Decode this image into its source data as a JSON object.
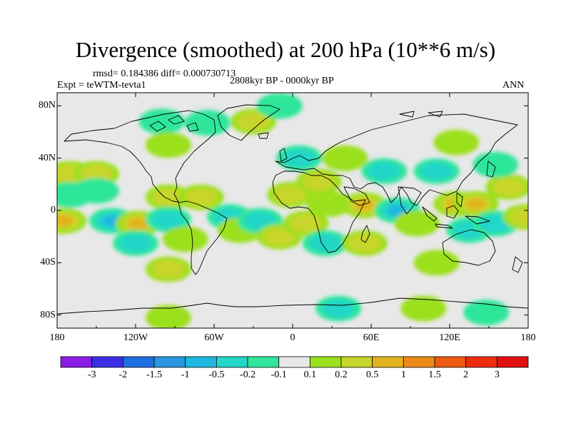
{
  "title": "Divergence (smoothed) at 200 hPa (10**6 m/s)",
  "stats": "rmsd= 0.184386 diff= 0.000730713",
  "expt_label": "Expt = teWTM-tevta1",
  "period": "2808kyr BP - 0000kyr BP",
  "season": "ANN",
  "x_ticks": [
    "180",
    "120W",
    "60W",
    "0",
    "60E",
    "120E",
    "180"
  ],
  "y_ticks": [
    "80N",
    "40N",
    "0",
    "40S",
    "80S"
  ],
  "colorbar": {
    "labels": [
      "-3",
      "-2",
      "-1.5",
      "-1",
      "-0.5",
      "-0.2",
      "-0.1",
      "0.1",
      "0.2",
      "0.5",
      "1",
      "1.5",
      "2",
      "3"
    ],
    "colors": [
      "#8a1de6",
      "#3b2ee6",
      "#1e6fe0",
      "#2a97e0",
      "#1fb8e0",
      "#23d6c8",
      "#2fe69a",
      "#e8e8e8",
      "#9be01c",
      "#c8d52a",
      "#e2b41f",
      "#ec8a1a",
      "#ee5a12",
      "#ee2d10",
      "#e01010"
    ]
  },
  "chart_data": {
    "type": "heatmap",
    "title": "Divergence (smoothed) at 200 hPa (10**6 m/s)",
    "units": "10**6 m/s",
    "xlim": [
      -180,
      180
    ],
    "ylim": [
      -90,
      90
    ],
    "contour_levels": [
      -3,
      -2,
      -1.5,
      -1,
      -0.5,
      -0.2,
      -0.1,
      0.1,
      0.2,
      0.5,
      1,
      1.5,
      2,
      3
    ],
    "anomalies": [
      {
        "lon": -170,
        "lat": 28,
        "value": 0.6
      },
      {
        "lon": -150,
        "lat": 28,
        "value": 0.6
      },
      {
        "lon": -170,
        "lat": 12,
        "value": -0.3
      },
      {
        "lon": -150,
        "lat": 15,
        "value": -0.25
      },
      {
        "lon": -175,
        "lat": -8,
        "value": 0.8
      },
      {
        "lon": -138,
        "lat": -8,
        "value": -1.0
      },
      {
        "lon": -118,
        "lat": -10,
        "value": 0.8
      },
      {
        "lon": -120,
        "lat": -25,
        "value": -0.5
      },
      {
        "lon": -95,
        "lat": 10,
        "value": 0.7
      },
      {
        "lon": -70,
        "lat": 10,
        "value": 0.5
      },
      {
        "lon": -95,
        "lat": -7,
        "value": -0.6
      },
      {
        "lon": -82,
        "lat": -22,
        "value": 0.3
      },
      {
        "lon": -95,
        "lat": -45,
        "value": 0.4
      },
      {
        "lon": -95,
        "lat": -82,
        "value": 0.3
      },
      {
        "lon": -48,
        "lat": -5,
        "value": -0.4
      },
      {
        "lon": -40,
        "lat": -15,
        "value": 0.3
      },
      {
        "lon": -25,
        "lat": -8,
        "value": -0.6
      },
      {
        "lon": -10,
        "lat": -20,
        "value": 0.4
      },
      {
        "lon": -100,
        "lat": 68,
        "value": -0.3
      },
      {
        "lon": -95,
        "lat": 50,
        "value": 0.25
      },
      {
        "lon": -65,
        "lat": 67,
        "value": -0.3
      },
      {
        "lon": -30,
        "lat": 68,
        "value": 0.5
      },
      {
        "lon": -10,
        "lat": 80,
        "value": -0.3
      },
      {
        "lon": -2,
        "lat": 12,
        "value": 0.5
      },
      {
        "lon": 10,
        "lat": -10,
        "value": 0.4
      },
      {
        "lon": 20,
        "lat": 22,
        "value": 0.4
      },
      {
        "lon": 25,
        "lat": -25,
        "value": -0.7
      },
      {
        "lon": 28,
        "lat": 5,
        "value": 0.3
      },
      {
        "lon": 40,
        "lat": 40,
        "value": 0.3
      },
      {
        "lon": 55,
        "lat": 4,
        "value": 0.9
      },
      {
        "lon": 70,
        "lat": 30,
        "value": -0.5
      },
      {
        "lon": 55,
        "lat": -25,
        "value": 0.5
      },
      {
        "lon": 80,
        "lat": 0,
        "value": -0.8
      },
      {
        "lon": 95,
        "lat": -10,
        "value": 0.3
      },
      {
        "lon": 110,
        "lat": 30,
        "value": -0.7
      },
      {
        "lon": 125,
        "lat": 5,
        "value": 1.1
      },
      {
        "lon": 140,
        "lat": 5,
        "value": 0.8
      },
      {
        "lon": 135,
        "lat": -15,
        "value": -0.5
      },
      {
        "lon": 155,
        "lat": -10,
        "value": -0.4
      },
      {
        "lon": 165,
        "lat": 18,
        "value": 0.5
      },
      {
        "lon": 178,
        "lat": -5,
        "value": 0.7
      },
      {
        "lon": 110,
        "lat": -40,
        "value": 0.25
      },
      {
        "lon": 155,
        "lat": 35,
        "value": -0.3
      },
      {
        "lon": 125,
        "lat": 52,
        "value": 0.25
      },
      {
        "lon": 100,
        "lat": -75,
        "value": 0.3
      },
      {
        "lon": 35,
        "lat": -75,
        "value": -0.4
      },
      {
        "lon": 148,
        "lat": -78,
        "value": -0.3
      },
      {
        "lon": 5,
        "lat": 40,
        "value": -0.4
      }
    ]
  }
}
